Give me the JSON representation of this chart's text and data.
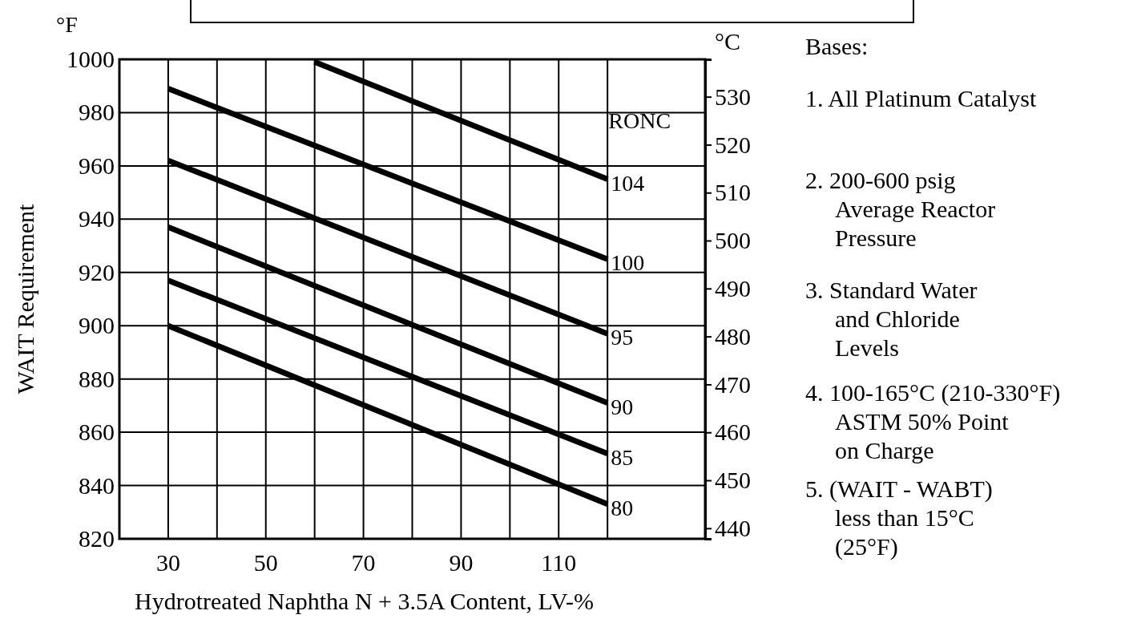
{
  "chart_data": {
    "type": "line",
    "xlabel": "Hydrotreated Naphtha N + 3.5A Content, LV-%",
    "ylabel": "WAIT Requirement",
    "y2label": "°C",
    "legend_title": "RONC",
    "xlim": [
      20,
      140
    ],
    "xticks": [
      30,
      {
        "value": 40,
        "label": null
      },
      50,
      {
        "value": 60,
        "label": null
      },
      70,
      {
        "value": 80,
        "label": null
      },
      90,
      {
        "value": 100,
        "label": null
      },
      110,
      {
        "value": 120,
        "label": null
      }
    ],
    "ylim": [
      820,
      1000
    ],
    "yticks": [
      820,
      840,
      860,
      880,
      900,
      920,
      940,
      960,
      980,
      1000
    ],
    "y2lim": [
      437.8,
      537.8
    ],
    "y2ticks": [
      440,
      450,
      460,
      470,
      480,
      490,
      500,
      510,
      520,
      530
    ],
    "grid": true,
    "line_style": "solid",
    "marker": "none",
    "series": [
      {
        "name": "104",
        "color": "#000000",
        "x": [
          60,
          120
        ],
        "values": [
          999,
          955
        ]
      },
      {
        "name": "100",
        "color": "#000000",
        "x": [
          30,
          120
        ],
        "values": [
          989,
          925
        ]
      },
      {
        "name": "95",
        "color": "#000000",
        "x": [
          30,
          120
        ],
        "values": [
          962,
          897
        ]
      },
      {
        "name": "90",
        "color": "#000000",
        "x": [
          30,
          120
        ],
        "values": [
          937,
          871
        ]
      },
      {
        "name": "85",
        "color": "#000000",
        "x": [
          30,
          120
        ],
        "values": [
          917,
          852
        ]
      },
      {
        "name": "80",
        "color": "#000000",
        "x": [
          30,
          120
        ],
        "values": [
          900,
          833
        ]
      }
    ],
    "annotations": [
      "°F",
      "Bases:",
      "1. All Platinum Catalyst",
      "2. 200-600 psig\nAverage Reactor\nPressure",
      "3. Standard Water\nand Chloride\nLevels",
      "4. 100-165°C (210-330°F)\nASTM 50% Point\non Charge",
      "5. (WAIT - WABT)\nless than 15°C\n(25°F)"
    ]
  }
}
